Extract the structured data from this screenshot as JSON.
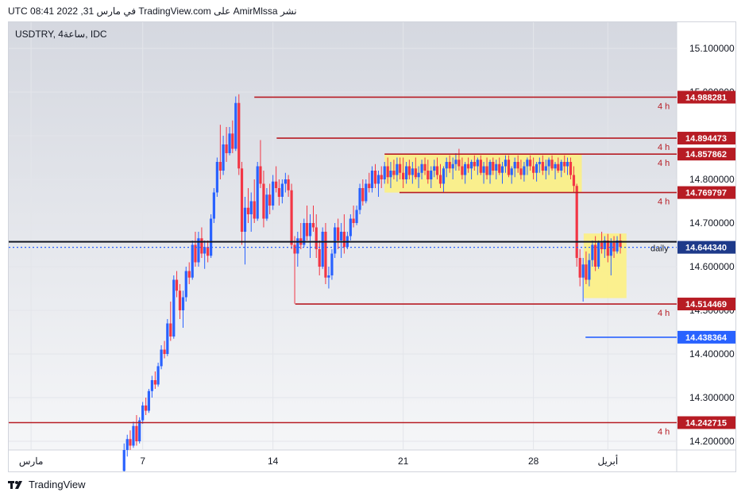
{
  "header": {
    "text": "نشر AmirMlssa على TradingView.com في مارس 31, 2022 08:41 UTC"
  },
  "symbol": {
    "text": "USDTRY, 4ساعة, IDC"
  },
  "footer": {
    "brand": "TradingView",
    "logo_icon": "tradingview-logo-icon"
  },
  "chart_data": {
    "type": "candlestick",
    "price_scale": {
      "min": 14.18,
      "max": 15.16,
      "ticks": [
        "15.100000",
        "15.000000",
        "14.900000",
        "14.800000",
        "14.700000",
        "14.600000",
        "14.500000",
        "14.400000",
        "14.300000",
        "14.200000"
      ]
    },
    "x_ticks": [
      {
        "label": "مارس",
        "day": 1
      },
      {
        "label": "7",
        "day": 7
      },
      {
        "label": "14",
        "day": 14
      },
      {
        "label": "21",
        "day": 21
      },
      {
        "label": "28",
        "day": 28
      },
      {
        "label": "أبريل",
        "day": 32
      }
    ],
    "x_range_days": [
      -0.2,
      35.7
    ],
    "horizontal_levels": [
      {
        "value": "14.988281",
        "price": 14.988281,
        "tag": "4 h",
        "color": "#b71c24",
        "from_day": 13.0
      },
      {
        "value": "14.894473",
        "price": 14.894473,
        "tag": "4 h",
        "color": "#b71c24",
        "from_day": 14.2
      },
      {
        "value": "14.857862",
        "price": 14.857862,
        "tag": "4 h",
        "color": "#b71c24",
        "from_day": 20.0
      },
      {
        "value": "14.769797",
        "price": 14.769797,
        "tag": "4 h",
        "color": "#b71c24",
        "from_day": 20.8
      },
      {
        "value": "14.514469",
        "price": 14.514469,
        "tag": "4 h",
        "color": "#b71c24",
        "from_day": 15.2
      },
      {
        "value": "14.242715",
        "price": 14.242715,
        "tag": "4 h",
        "color": "#b71c24",
        "from_day": -0.2
      },
      {
        "value": "14.438364",
        "price": 14.438364,
        "tag": "",
        "color": "#2962ff",
        "from_day": 30.8
      }
    ],
    "daily_level": {
      "price": 14.657,
      "tag": "daily",
      "color": "#131722"
    },
    "last_price": {
      "value": "14.644340",
      "price": 14.64434,
      "color": "#1e3a8a"
    },
    "highlight_zones": [
      {
        "from_day": 20.0,
        "to_day": 30.6,
        "top": 14.857862,
        "bottom": 14.769797,
        "color": "#fff176"
      },
      {
        "from_day": 30.7,
        "to_day": 33.0,
        "top": 14.676,
        "bottom": 14.528,
        "color": "#fff176"
      }
    ],
    "colors": {
      "up": "#2962ff",
      "down": "#f23645",
      "background_top": "#d5d8e0",
      "background_bottom": "#f5f6f8"
    },
    "candles": [
      [
        6.0,
        14.132,
        14.195,
        14.118,
        14.18
      ],
      [
        6.17,
        14.18,
        14.215,
        14.165,
        14.205
      ],
      [
        6.33,
        14.205,
        14.225,
        14.18,
        14.19
      ],
      [
        6.5,
        14.19,
        14.245,
        14.185,
        14.235
      ],
      [
        6.67,
        14.235,
        14.26,
        14.19,
        14.2
      ],
      [
        6.83,
        14.2,
        14.255,
        14.195,
        14.248
      ],
      [
        7.0,
        14.248,
        14.29,
        14.24,
        14.282
      ],
      [
        7.17,
        14.282,
        14.3,
        14.26,
        14.27
      ],
      [
        7.33,
        14.27,
        14.32,
        14.265,
        14.315
      ],
      [
        7.5,
        14.315,
        14.35,
        14.3,
        14.34
      ],
      [
        7.67,
        14.34,
        14.36,
        14.32,
        14.33
      ],
      [
        7.83,
        14.33,
        14.38,
        14.325,
        14.372
      ],
      [
        8.0,
        14.372,
        14.42,
        14.365,
        14.41
      ],
      [
        8.17,
        14.41,
        14.43,
        14.39,
        14.4
      ],
      [
        8.33,
        14.4,
        14.48,
        14.395,
        14.47
      ],
      [
        8.5,
        14.47,
        14.52,
        14.43,
        14.44
      ],
      [
        8.67,
        14.44,
        14.58,
        14.435,
        14.57
      ],
      [
        8.83,
        14.57,
        14.59,
        14.53,
        14.545
      ],
      [
        9.0,
        14.545,
        14.56,
        14.48,
        14.5
      ],
      [
        9.17,
        14.5,
        14.545,
        14.46,
        14.53
      ],
      [
        9.33,
        14.53,
        14.6,
        14.52,
        14.59
      ],
      [
        9.5,
        14.59,
        14.61,
        14.56,
        14.575
      ],
      [
        9.67,
        14.575,
        14.66,
        14.57,
        14.65
      ],
      [
        9.83,
        14.65,
        14.68,
        14.6,
        14.61
      ],
      [
        10.0,
        14.61,
        14.68,
        14.6,
        14.665
      ],
      [
        10.17,
        14.665,
        14.69,
        14.62,
        14.63
      ],
      [
        10.33,
        14.63,
        14.66,
        14.595,
        14.645
      ],
      [
        10.5,
        14.645,
        14.66,
        14.61,
        14.625
      ],
      [
        10.67,
        14.625,
        14.72,
        14.62,
        14.71
      ],
      [
        10.83,
        14.71,
        14.78,
        14.7,
        14.77
      ],
      [
        11.0,
        14.77,
        14.85,
        14.76,
        14.84
      ],
      [
        11.17,
        14.84,
        14.925,
        14.8,
        14.82
      ],
      [
        11.33,
        14.82,
        14.9,
        14.81,
        14.88
      ],
      [
        11.5,
        14.88,
        14.92,
        14.84,
        14.86
      ],
      [
        11.67,
        14.86,
        14.92,
        14.855,
        14.905
      ],
      [
        11.83,
        14.905,
        14.935,
        14.86,
        14.87
      ],
      [
        12.0,
        14.87,
        14.99,
        14.865,
        14.975
      ],
      [
        12.17,
        14.975,
        14.995,
        14.81,
        14.825
      ],
      [
        12.33,
        14.825,
        14.84,
        14.65,
        14.68
      ],
      [
        12.5,
        14.68,
        14.76,
        14.605,
        14.735
      ],
      [
        12.67,
        14.735,
        14.78,
        14.7,
        14.72
      ],
      [
        12.83,
        14.72,
        14.77,
        14.68,
        14.75
      ],
      [
        13.0,
        14.75,
        14.8,
        14.7,
        14.71
      ],
      [
        13.17,
        14.71,
        14.84,
        14.705,
        14.83
      ],
      [
        13.33,
        14.83,
        14.89,
        14.78,
        14.79
      ],
      [
        13.5,
        14.79,
        14.82,
        14.69,
        14.71
      ],
      [
        13.67,
        14.71,
        14.78,
        14.705,
        14.765
      ],
      [
        13.83,
        14.765,
        14.79,
        14.72,
        14.74
      ],
      [
        14.0,
        14.74,
        14.81,
        14.73,
        14.795
      ],
      [
        14.17,
        14.795,
        14.83,
        14.77,
        14.78
      ],
      [
        14.33,
        14.78,
        14.8,
        14.74,
        14.76
      ],
      [
        14.5,
        14.76,
        14.8,
        14.745,
        14.79
      ],
      [
        14.67,
        14.79,
        14.815,
        14.77,
        14.8
      ],
      [
        14.83,
        14.8,
        14.81,
        14.76,
        14.775
      ],
      [
        15.0,
        14.775,
        14.79,
        14.64,
        14.65
      ],
      [
        15.17,
        14.65,
        14.67,
        14.515,
        14.63
      ],
      [
        15.33,
        14.63,
        14.68,
        14.6,
        14.665
      ],
      [
        15.5,
        14.665,
        14.7,
        14.64,
        14.65
      ],
      [
        15.67,
        14.65,
        14.71,
        14.645,
        14.7
      ],
      [
        15.83,
        14.7,
        14.74,
        14.66,
        14.67
      ],
      [
        16.0,
        14.67,
        14.72,
        14.62,
        14.7
      ],
      [
        16.17,
        14.7,
        14.74,
        14.68,
        14.69
      ],
      [
        16.33,
        14.69,
        14.72,
        14.62,
        14.64
      ],
      [
        16.5,
        14.64,
        14.66,
        14.58,
        14.6
      ],
      [
        16.67,
        14.6,
        14.69,
        14.595,
        14.68
      ],
      [
        16.83,
        14.68,
        14.7,
        14.56,
        14.575
      ],
      [
        17.0,
        14.575,
        14.6,
        14.55,
        14.58
      ],
      [
        17.17,
        14.58,
        14.64,
        14.57,
        14.63
      ],
      [
        17.33,
        14.63,
        14.7,
        14.62,
        14.69
      ],
      [
        17.5,
        14.69,
        14.71,
        14.64,
        14.66
      ],
      [
        17.67,
        14.66,
        14.7,
        14.62,
        14.68
      ],
      [
        17.83,
        14.68,
        14.72,
        14.63,
        14.645
      ],
      [
        18.0,
        14.645,
        14.68,
        14.64,
        14.67
      ],
      [
        18.17,
        14.67,
        14.72,
        14.66,
        14.71
      ],
      [
        18.33,
        14.71,
        14.74,
        14.69,
        14.7
      ],
      [
        18.5,
        14.7,
        14.74,
        14.695,
        14.73
      ],
      [
        18.67,
        14.73,
        14.79,
        14.72,
        14.78
      ],
      [
        18.83,
        14.78,
        14.8,
        14.74,
        14.75
      ],
      [
        19.0,
        14.75,
        14.8,
        14.745,
        14.79
      ],
      [
        19.17,
        14.79,
        14.815,
        14.77,
        14.78
      ],
      [
        19.33,
        14.78,
        14.83,
        14.77,
        14.82
      ],
      [
        19.5,
        14.82,
        14.835,
        14.78,
        14.79
      ],
      [
        19.67,
        14.79,
        14.82,
        14.76,
        14.81
      ],
      [
        19.83,
        14.81,
        14.83,
        14.78,
        14.8
      ],
      [
        20.0,
        14.8,
        14.84,
        14.79,
        14.83
      ],
      [
        20.17,
        14.83,
        14.85,
        14.79,
        14.805
      ],
      [
        20.33,
        14.805,
        14.84,
        14.78,
        14.82
      ],
      [
        20.5,
        14.82,
        14.845,
        14.8,
        14.81
      ],
      [
        20.67,
        14.81,
        14.85,
        14.795,
        14.835
      ],
      [
        20.83,
        14.835,
        14.85,
        14.8,
        14.815
      ],
      [
        21.0,
        14.815,
        14.85,
        14.78,
        14.8
      ],
      [
        21.17,
        14.8,
        14.84,
        14.79,
        14.83
      ],
      [
        21.33,
        14.83,
        14.845,
        14.8,
        14.81
      ],
      [
        21.5,
        14.81,
        14.84,
        14.79,
        14.825
      ],
      [
        21.67,
        14.825,
        14.85,
        14.8,
        14.805
      ],
      [
        21.83,
        14.805,
        14.83,
        14.78,
        14.815
      ],
      [
        22.0,
        14.815,
        14.845,
        14.8,
        14.835
      ],
      [
        22.17,
        14.835,
        14.85,
        14.81,
        14.82
      ],
      [
        22.33,
        14.82,
        14.845,
        14.79,
        14.8
      ],
      [
        22.5,
        14.8,
        14.83,
        14.78,
        14.82
      ],
      [
        22.67,
        14.82,
        14.845,
        14.805,
        14.83
      ],
      [
        22.83,
        14.83,
        14.85,
        14.8,
        14.81
      ],
      [
        23.0,
        14.81,
        14.835,
        14.78,
        14.79
      ],
      [
        23.17,
        14.79,
        14.83,
        14.77,
        14.825
      ],
      [
        23.33,
        14.825,
        14.85,
        14.805,
        14.84
      ],
      [
        23.5,
        14.84,
        14.855,
        14.815,
        14.825
      ],
      [
        23.67,
        14.825,
        14.85,
        14.8,
        14.835
      ],
      [
        23.83,
        14.835,
        14.86,
        14.82,
        14.845
      ],
      [
        24.0,
        14.845,
        14.87,
        14.82,
        14.83
      ],
      [
        24.17,
        14.83,
        14.85,
        14.8,
        14.81
      ],
      [
        24.33,
        14.81,
        14.84,
        14.79,
        14.835
      ],
      [
        24.5,
        14.835,
        14.85,
        14.815,
        14.825
      ],
      [
        24.67,
        14.825,
        14.845,
        14.8,
        14.84
      ],
      [
        24.83,
        14.84,
        14.855,
        14.82,
        14.83
      ],
      [
        25.0,
        14.83,
        14.85,
        14.81,
        14.845
      ],
      [
        25.17,
        14.845,
        14.855,
        14.81,
        14.815
      ],
      [
        25.33,
        14.815,
        14.84,
        14.79,
        14.83
      ],
      [
        25.5,
        14.83,
        14.85,
        14.8,
        14.81
      ],
      [
        25.67,
        14.81,
        14.845,
        14.79,
        14.84
      ],
      [
        25.83,
        14.84,
        14.85,
        14.81,
        14.82
      ],
      [
        26.0,
        14.82,
        14.845,
        14.8,
        14.835
      ],
      [
        26.17,
        14.835,
        14.85,
        14.81,
        14.815
      ],
      [
        26.33,
        14.815,
        14.84,
        14.79,
        14.83
      ],
      [
        26.5,
        14.83,
        14.855,
        14.815,
        14.845
      ],
      [
        26.67,
        14.845,
        14.855,
        14.805,
        14.81
      ],
      [
        26.83,
        14.81,
        14.83,
        14.79,
        14.825
      ],
      [
        27.0,
        14.825,
        14.85,
        14.805,
        14.84
      ],
      [
        27.17,
        14.84,
        14.855,
        14.815,
        14.825
      ],
      [
        27.33,
        14.825,
        14.845,
        14.8,
        14.81
      ],
      [
        27.5,
        14.81,
        14.84,
        14.795,
        14.83
      ],
      [
        27.67,
        14.83,
        14.85,
        14.81,
        14.845
      ],
      [
        27.83,
        14.845,
        14.855,
        14.82,
        14.83
      ],
      [
        28.0,
        14.83,
        14.85,
        14.8,
        14.815
      ],
      [
        28.17,
        14.815,
        14.84,
        14.795,
        14.835
      ],
      [
        28.33,
        14.835,
        14.85,
        14.815,
        14.84
      ],
      [
        28.5,
        14.84,
        14.855,
        14.81,
        14.82
      ],
      [
        28.67,
        14.82,
        14.845,
        14.8,
        14.83
      ],
      [
        28.83,
        14.83,
        14.85,
        14.81,
        14.845
      ],
      [
        29.0,
        14.845,
        14.855,
        14.82,
        14.825
      ],
      [
        29.17,
        14.825,
        14.84,
        14.8,
        14.835
      ],
      [
        29.33,
        14.835,
        14.85,
        14.815,
        14.82
      ],
      [
        29.5,
        14.82,
        14.845,
        14.805,
        14.84
      ],
      [
        29.67,
        14.84,
        14.855,
        14.815,
        14.83
      ],
      [
        29.83,
        14.83,
        14.85,
        14.81,
        14.84
      ],
      [
        30.0,
        14.84,
        14.85,
        14.8,
        14.81
      ],
      [
        30.17,
        14.81,
        14.83,
        14.77,
        14.785
      ],
      [
        30.33,
        14.785,
        14.79,
        14.6,
        14.62
      ],
      [
        30.5,
        14.62,
        14.64,
        14.555,
        14.575
      ],
      [
        30.67,
        14.575,
        14.62,
        14.52,
        14.605
      ],
      [
        30.83,
        14.605,
        14.635,
        14.56,
        14.57
      ],
      [
        31.0,
        14.57,
        14.63,
        14.555,
        14.615
      ],
      [
        31.17,
        14.615,
        14.66,
        14.6,
        14.65
      ],
      [
        31.33,
        14.65,
        14.67,
        14.59,
        14.6
      ],
      [
        31.5,
        14.6,
        14.66,
        14.595,
        14.655
      ],
      [
        31.67,
        14.655,
        14.68,
        14.63,
        14.64
      ],
      [
        31.83,
        14.64,
        14.67,
        14.62,
        14.66
      ],
      [
        32.0,
        14.66,
        14.675,
        14.61,
        14.625
      ],
      [
        32.17,
        14.625,
        14.665,
        14.58,
        14.655
      ],
      [
        32.33,
        14.655,
        14.67,
        14.62,
        14.635
      ],
      [
        32.5,
        14.635,
        14.67,
        14.63,
        14.66
      ],
      [
        32.67,
        14.66,
        14.675,
        14.63,
        14.645
      ]
    ]
  }
}
